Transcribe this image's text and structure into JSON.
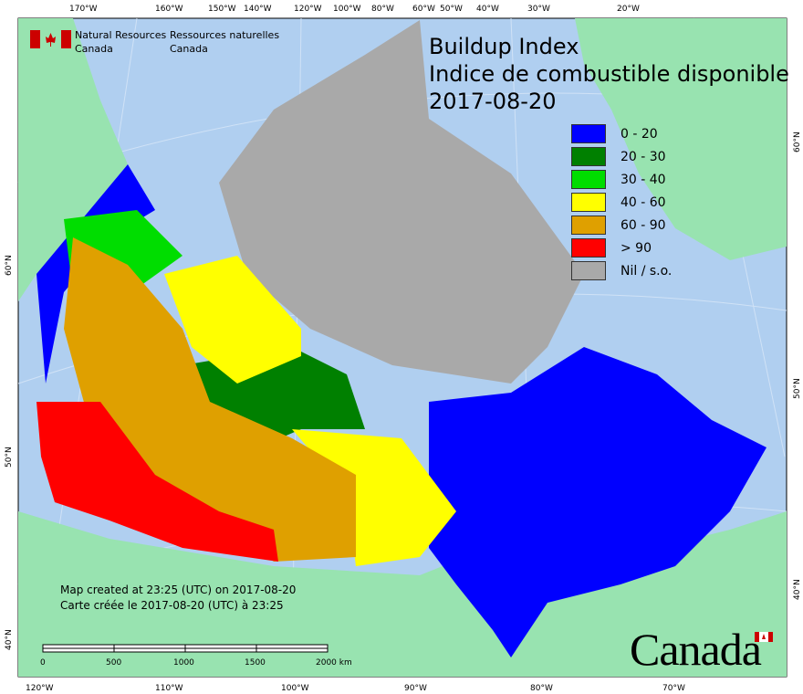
{
  "header": {
    "org_en_line1": "Natural Resources",
    "org_en_line2": "Canada",
    "org_fr_line1": "Ressources naturelles",
    "org_fr_line2": "Canada",
    "title_en": "Buildup Index",
    "title_fr": "Indice de combustible disponible",
    "date": "2017-08-20"
  },
  "legend": [
    {
      "label": "0 - 20",
      "color": "#0000ff"
    },
    {
      "label": "20 - 30",
      "color": "#008000"
    },
    {
      "label": "30 - 40",
      "color": "#00dd00"
    },
    {
      "label": "40 - 60",
      "color": "#ffff00"
    },
    {
      "label": "60 - 90",
      "color": "#dfa000"
    },
    {
      "label": "> 90",
      "color": "#ff0000"
    },
    {
      "label": "Nil / s.o.",
      "color": "#a9a9a9"
    }
  ],
  "notes": {
    "created_en": "Map created at 23:25 (UTC) on 2017-08-20",
    "created_fr": "Carte créée le 2017-08-20 (UTC) à 23:25"
  },
  "scalebar": {
    "labels": [
      "0",
      "500",
      "1000",
      "1500",
      "2000  km"
    ]
  },
  "axes": {
    "top": [
      "170°W",
      "160°W",
      "150°W",
      "140°W",
      "120°W",
      "100°W",
      "80°W",
      "60°W",
      "50°W",
      "40°W",
      "30°W",
      "20°W"
    ],
    "bottom": [
      "120°W",
      "110°W",
      "100°W",
      "90°W",
      "80°W",
      "70°W"
    ],
    "left": [
      "60°N",
      "50°N",
      "40°N"
    ],
    "right": [
      "60°N",
      "50°N",
      "40°N"
    ]
  },
  "wordmark": "Canada",
  "colors": {
    "water": "#b0cff0",
    "land": "#98e3b0",
    "nil": "#a9a9a9"
  }
}
